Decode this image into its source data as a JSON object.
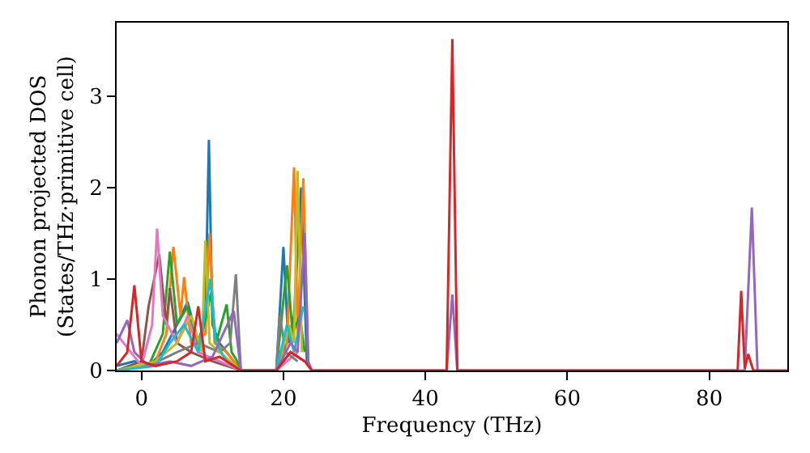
{
  "chart_data": {
    "type": "line",
    "xlabel": "Frequency (THz)",
    "ylabel": "Phonon projected DOS\n(States/THz·primitive cell)",
    "xlim": [
      -3.5,
      91
    ],
    "ylim": [
      0,
      3.8
    ],
    "xticks": [
      0,
      20,
      40,
      60,
      80
    ],
    "yticks": [
      0,
      1,
      2,
      3
    ],
    "legend": false,
    "marker": "none",
    "line_style": "solid",
    "series": [
      {
        "color": "#1f77b4",
        "x": [
          -3.5,
          -1,
          1,
          3,
          5,
          6.5,
          8,
          9,
          9.5,
          10,
          11,
          13,
          14,
          19,
          20,
          20.7,
          21.5,
          22.5,
          23.3,
          24
        ],
        "values": [
          0.05,
          0.1,
          0.05,
          0.2,
          0.5,
          0.75,
          0.3,
          0.6,
          2.52,
          0.5,
          0.3,
          0.1,
          0,
          0,
          1.35,
          0.3,
          0.6,
          2.0,
          0.1,
          0
        ]
      },
      {
        "color": "#ff7f0e",
        "x": [
          -3.5,
          0,
          2,
          3.5,
          4.5,
          5.5,
          6,
          7,
          9,
          9.6,
          10.3,
          12,
          14,
          19,
          20.5,
          21.5,
          22,
          22.8,
          23.5
        ],
        "values": [
          0,
          0.05,
          0.1,
          0.4,
          1.35,
          0.6,
          1.02,
          0.3,
          0.4,
          1.5,
          0.3,
          0.2,
          0,
          0,
          0.3,
          2.22,
          0.4,
          2.1,
          0.1
        ]
      },
      {
        "color": "#2ca02c",
        "x": [
          -3.5,
          1,
          3,
          4,
          5,
          6.5,
          8,
          9.8,
          10.5,
          12,
          12.7,
          13.5,
          14,
          19,
          20.5,
          21.3,
          22.3,
          23
        ],
        "values": [
          0,
          0.05,
          0.4,
          1.3,
          0.5,
          0.7,
          0.2,
          0.85,
          0.3,
          0.72,
          0.2,
          0.1,
          0,
          0,
          1.15,
          0.4,
          0.6,
          0.2
        ]
      },
      {
        "color": "#8c564b",
        "x": [
          -3.5,
          0,
          1,
          2.5,
          3.5,
          4,
          5,
          7,
          10,
          14,
          19,
          21,
          23
        ],
        "values": [
          0,
          0.1,
          0.7,
          1.27,
          0.5,
          0.9,
          0.3,
          0.2,
          0.1,
          0,
          0,
          0.2,
          0.1
        ]
      },
      {
        "color": "#e377c2",
        "x": [
          -3.5,
          -2.5,
          0,
          1.5,
          2.2,
          3,
          5,
          6.5,
          8,
          11,
          14,
          19,
          22
        ],
        "values": [
          0.4,
          0.3,
          0.05,
          0.5,
          1.55,
          0.6,
          0.3,
          0.6,
          0.2,
          0.1,
          0,
          0,
          0.2
        ]
      },
      {
        "color": "#7f7f7f",
        "x": [
          -3.5,
          1,
          5,
          8,
          11,
          12.5,
          13.3,
          14,
          19,
          19.5,
          20.3,
          22
        ],
        "values": [
          0,
          0.05,
          0.2,
          0.3,
          0.2,
          0.3,
          1.05,
          0,
          0,
          0.6,
          0.2,
          0.1
        ]
      },
      {
        "color": "#bcbd22",
        "x": [
          -3.5,
          2,
          5,
          7,
          8.5,
          9,
          9.6,
          11,
          14,
          19,
          20.8,
          21.5,
          22,
          22.6
        ],
        "values": [
          0,
          0.1,
          0.3,
          0.6,
          0.2,
          1.42,
          0.3,
          0.2,
          0,
          0,
          0.5,
          0.3,
          2.18,
          0.2
        ]
      },
      {
        "color": "#17becf",
        "x": [
          -3.5,
          2,
          4,
          6,
          8,
          9.7,
          10.5,
          12,
          14,
          19,
          20.5,
          21.5,
          22.8
        ],
        "values": [
          0,
          0.05,
          0.3,
          0.5,
          0.2,
          1.0,
          0.3,
          0.1,
          0,
          0,
          0.5,
          0.2,
          0.7
        ]
      },
      {
        "color": "#9467bd",
        "x": [
          -3.5,
          -2,
          -1,
          1,
          4,
          7,
          10,
          13,
          14,
          19,
          21,
          22,
          23,
          23.5,
          24,
          43,
          43.8,
          44.5,
          85,
          86,
          86.8
        ],
        "values": [
          0.3,
          0.55,
          0.2,
          0.05,
          0.1,
          0.05,
          0.15,
          0.65,
          0,
          0,
          0.3,
          0.2,
          1.5,
          0.1,
          0,
          0,
          0.83,
          0,
          0,
          1.78,
          0
        ]
      },
      {
        "color": "#d62728",
        "x": [
          -3.5,
          -2,
          -1,
          0,
          2,
          5,
          7,
          8,
          9,
          11,
          14,
          19,
          21,
          23,
          24,
          43,
          43.8,
          44.5,
          84,
          84.5,
          85,
          85.5,
          86.2,
          91
        ],
        "values": [
          0.05,
          0.2,
          0.93,
          0.1,
          0.05,
          0.1,
          0.2,
          0.7,
          0.1,
          0.15,
          0,
          0,
          0.2,
          0.1,
          0,
          0,
          3.62,
          0,
          0,
          0.87,
          0.02,
          0.18,
          0,
          0
        ]
      }
    ]
  }
}
